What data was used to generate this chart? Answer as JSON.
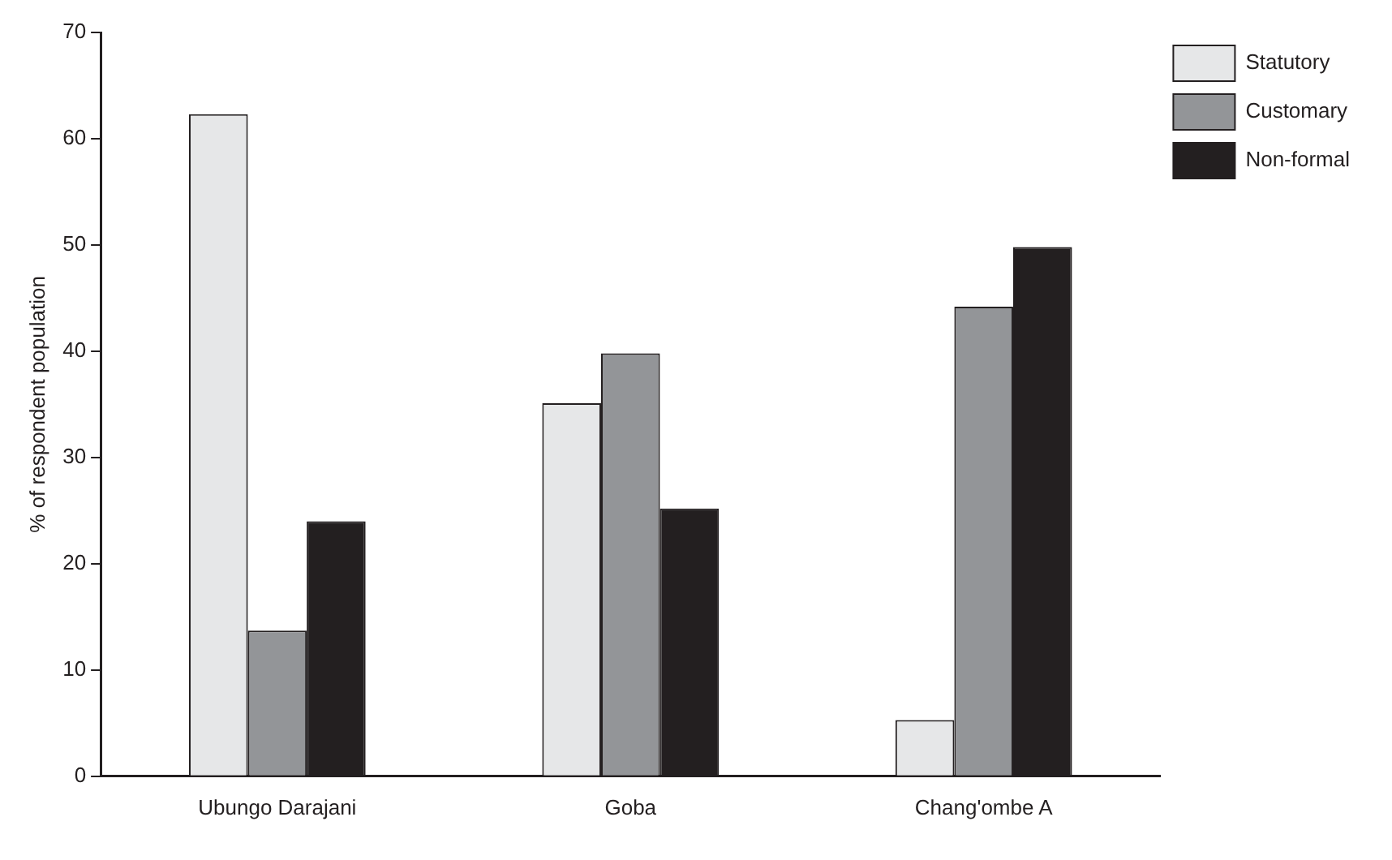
{
  "chart_data": {
    "type": "bar",
    "ylabel": "% of respondent population",
    "categories": [
      "Ubungo Darajani",
      "Goba",
      "Chang'ombe A"
    ],
    "series": [
      {
        "name": "Statutory",
        "color": "#e6e7e8",
        "values": [
          62.3,
          35.1,
          5.3
        ]
      },
      {
        "name": "Customary",
        "color": "#939598",
        "values": [
          13.7,
          39.8,
          44.2
        ]
      },
      {
        "name": "Non-formal",
        "color": "#231f20",
        "values": [
          24.0,
          25.2,
          49.8
        ]
      }
    ],
    "ylim": [
      0,
      70
    ],
    "yticks": [
      0,
      10,
      20,
      30,
      40,
      50,
      60,
      70
    ],
    "grid": false,
    "legend": "top right"
  }
}
